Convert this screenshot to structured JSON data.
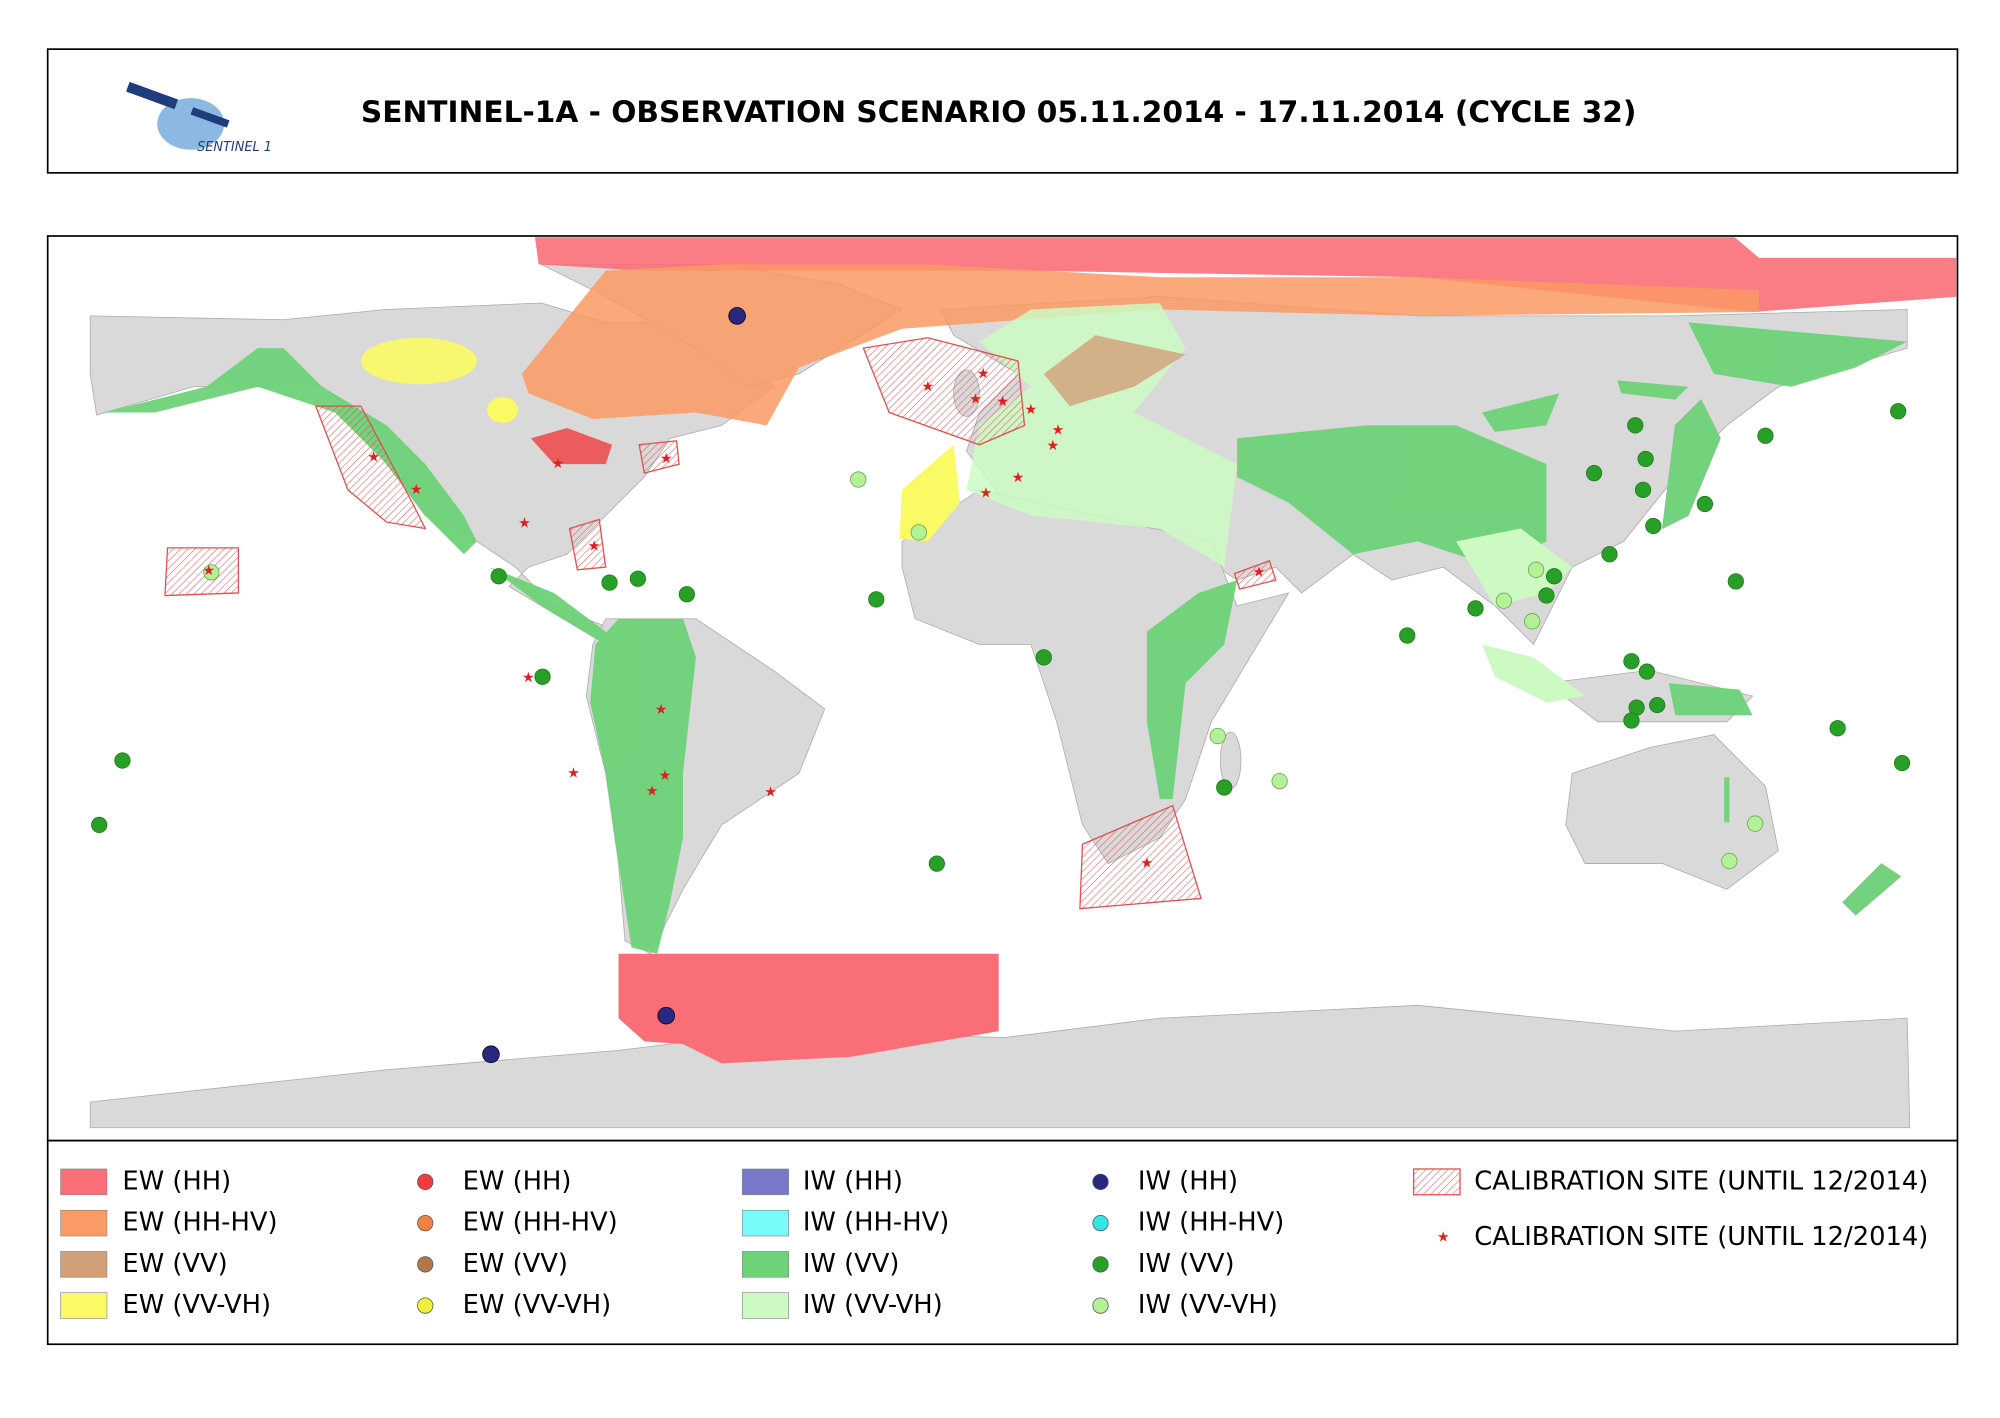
{
  "header": {
    "title": "SENTINEL-1A - OBSERVATION SCENARIO 05.11.2014 - 17.11.2014 (CYCLE 32)",
    "logo_text": "SENTINEL 1"
  },
  "legend": {
    "ew_areas": [
      {
        "label": "EW (HH)",
        "color": "#fa6e78"
      },
      {
        "label": "EW (HH-HV)",
        "color": "#fa9a64"
      },
      {
        "label": "EW (VV)",
        "color": "#d2a078"
      },
      {
        "label": "EW (VV-VH)",
        "color": "#fafa64"
      }
    ],
    "ew_points": [
      {
        "label": "EW (HH)",
        "color": "#f03c3c"
      },
      {
        "label": "EW (HH-HV)",
        "color": "#f08246"
      },
      {
        "label": "EW (VV)",
        "color": "#b47846"
      },
      {
        "label": "EW (VV-VH)",
        "color": "#f0f03c"
      }
    ],
    "iw_areas": [
      {
        "label": "IW (HH)",
        "color": "#7878c8"
      },
      {
        "label": "IW (HH-HV)",
        "color": "#78fafa"
      },
      {
        "label": "IW (VV)",
        "color": "#6ed278"
      },
      {
        "label": "IW (VV-VH)",
        "color": "#cdfac3"
      }
    ],
    "iw_points": [
      {
        "label": "IW (HH)",
        "color": "#282882"
      },
      {
        "label": "IW (HH-HV)",
        "color": "#32e6e6"
      },
      {
        "label": "IW (VV)",
        "color": "#28a028"
      },
      {
        "label": "IW (VV-VH)",
        "color": "#b4f096"
      }
    ],
    "calibration": {
      "area": "CALIBRATION SITE (UNTIL 12/2014)",
      "site": "CALIBRATION SITE (UNTIL 12/2014)"
    }
  }
}
